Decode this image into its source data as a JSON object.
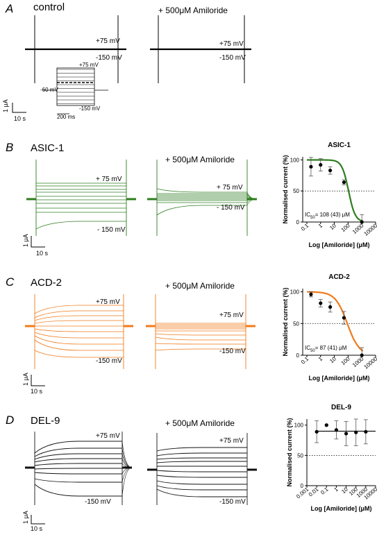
{
  "panels": {
    "A": {
      "letter": "A",
      "name": "control",
      "amiloride": "+ 500μM Amiloride",
      "v_hi": "+75 mV",
      "v_lo": "-150 mV",
      "inset": {
        "top": "+75 mV",
        "left": "-60 mV",
        "bottom": "-150 mV",
        "time": "200 ms"
      },
      "scale_y": "1 μA",
      "scale_x": "10 s"
    },
    "B": {
      "letter": "B",
      "name": "ASIC-1",
      "amiloride": "+ 500μM Amiloride",
      "v_hi": "+ 75 mV",
      "v_lo": "- 150 mV",
      "scale_y": "1 μA",
      "scale_x": "10 s",
      "color": "#2e7d1f"
    },
    "C": {
      "letter": "C",
      "name": "ACD-2",
      "amiloride": "+ 500μM Amiloride",
      "v_hi": "+75 mV",
      "v_lo": "-150 mV",
      "scale_y": "1 μA",
      "scale_x": "10 s",
      "color": "#f07a1a"
    },
    "D": {
      "letter": "D",
      "name": "DEL-9",
      "amiloride": "+ 500μM Amiloride",
      "v_hi": "+75 mV",
      "v_lo": "-150 mV",
      "scale_y": "1 μA",
      "scale_x": "10 s",
      "color": "#111111"
    }
  },
  "chart_data": [
    {
      "type": "scatter",
      "title": "ASIC-1",
      "xlabel": "Log [Amiloride] (μM)",
      "ylabel": "Normalised current (%)",
      "x_scale": "log",
      "xlim": [
        0.05,
        10000
      ],
      "ylim": [
        0,
        105
      ],
      "xticks": [
        "0.1",
        "1",
        "10",
        "100",
        "1000",
        "10000"
      ],
      "yticks": [
        "0",
        "50",
        "100"
      ],
      "series": [
        {
          "x": [
            0.2,
            1,
            5,
            50,
            1000
          ],
          "y": [
            89,
            92,
            83,
            64,
            0
          ],
          "err": [
            15,
            10,
            6,
            4,
            12
          ]
        }
      ],
      "fit": {
        "ic50": 108,
        "hill": 1.8,
        "color": "#2e7d1f"
      },
      "reference_line": 50,
      "annotation": {
        "pre": "IC",
        "sub": "50",
        "post": "= 108 (43) μM"
      }
    },
    {
      "type": "scatter",
      "title": "ACD-2",
      "xlabel": "Log [Amiloride] (μM)",
      "ylabel": "Normalised current (%)",
      "x_scale": "log",
      "xlim": [
        0.05,
        10000
      ],
      "ylim": [
        0,
        105
      ],
      "xticks": [
        "0.1",
        "1",
        "10",
        "100",
        "1000",
        "10000"
      ],
      "yticks": [
        "0",
        "50",
        "100"
      ],
      "series": [
        {
          "x": [
            0.2,
            1,
            5,
            50,
            1000
          ],
          "y": [
            96,
            82,
            76,
            59,
            0
          ],
          "err": [
            4,
            6,
            8,
            10,
            12
          ]
        }
      ],
      "fit": {
        "ic50": 87,
        "hill": 1.0,
        "color": "#f07a1a"
      },
      "reference_line": 50,
      "annotation": {
        "pre": "IC",
        "sub": "50",
        "post": "= 87 (41) μM"
      }
    },
    {
      "type": "scatter",
      "title": "DEL-9",
      "xlabel": "Log [Amiloride] (μM)",
      "ylabel": "Normalised current (%)",
      "x_scale": "log",
      "xlim": [
        0.001,
        10000
      ],
      "ylim": [
        0,
        110
      ],
      "xticks": [
        "0.001",
        "0.01",
        "0.1",
        "1",
        "10",
        "100",
        "1000",
        "10000"
      ],
      "yticks": [
        "0",
        "50",
        "100"
      ],
      "series": [
        {
          "x": [
            0.01,
            0.1,
            1,
            10,
            100,
            1000
          ],
          "y": [
            89,
            100,
            92,
            86,
            88,
            89
          ],
          "err": [
            18,
            0,
            15,
            20,
            22,
            20
          ]
        }
      ],
      "fit": {
        "flat": 90,
        "color": "#111111"
      },
      "reference_line": 50
    }
  ]
}
